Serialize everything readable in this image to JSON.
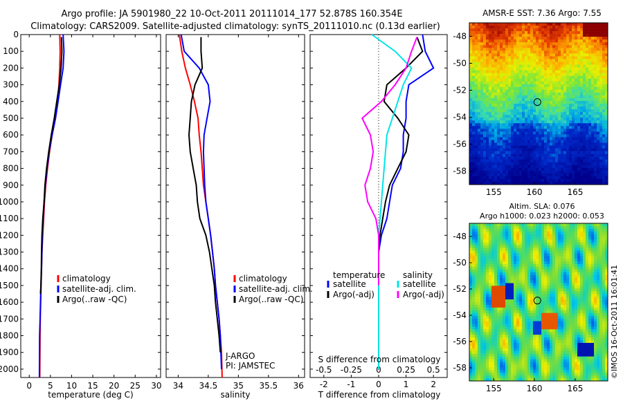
{
  "header": {
    "line1": "Argo profile: JA 5901980_22 10-Oct-2011 20111014_177 52.878S 160.354E",
    "line2": "Climatology: CARS2009. Satellite-adjusted climatology: synTS_20111010.nc (0.13d earlier)"
  },
  "colors": {
    "climatology": "#ff0000",
    "satellite": "#0000ff",
    "argo": "#000000",
    "salinity_satellite": "#00e5e5",
    "salinity_argo": "#ff00ff"
  },
  "chart_data": [
    {
      "type": "line",
      "panel": "temperature",
      "xlabel": "temperature (deg C)",
      "ylabel": "",
      "xlim": [
        -2,
        31
      ],
      "ylim": [
        2050,
        0
      ],
      "xticks": [
        0,
        5,
        10,
        15,
        20,
        25,
        30
      ],
      "yticks": [
        0,
        100,
        200,
        300,
        400,
        500,
        600,
        700,
        800,
        900,
        1000,
        1100,
        1200,
        1300,
        1400,
        1500,
        1600,
        1700,
        1800,
        1900,
        2000
      ],
      "legend": [
        "climatology",
        "satellite-adj. clim.",
        "Argo(..raw -QC)"
      ],
      "series": [
        {
          "name": "climatology",
          "color": "#ff0000",
          "x": [
            7.2,
            7.3,
            7.2,
            7.0,
            6.7,
            6.2,
            5.4,
            4.8,
            4.3,
            3.9,
            3.6,
            3.4,
            3.2,
            3.0,
            2.9,
            2.8,
            2.7,
            2.6,
            2.55,
            2.5
          ],
          "y": [
            0,
            100,
            200,
            300,
            400,
            500,
            600,
            700,
            800,
            900,
            1000,
            1100,
            1200,
            1300,
            1400,
            1500,
            1600,
            1700,
            1800,
            2050
          ]
        },
        {
          "name": "satellite-adj. clim.",
          "color": "#0000ff",
          "x": [
            8.0,
            8.2,
            8.0,
            7.4,
            6.8,
            6.2,
            5.4,
            4.7,
            4.2,
            3.8,
            3.5,
            3.3,
            3.1,
            3.0,
            2.9,
            2.75,
            2.65,
            2.55,
            2.45,
            2.4
          ],
          "y": [
            0,
            100,
            200,
            300,
            400,
            500,
            600,
            700,
            800,
            900,
            1000,
            1100,
            1200,
            1300,
            1400,
            1500,
            1600,
            1700,
            1800,
            2050
          ]
        },
        {
          "name": "Argo(..raw -QC)",
          "color": "#000000",
          "x": [
            7.6,
            7.7,
            7.5,
            7.1,
            6.5,
            5.9,
            5.2,
            4.6,
            4.1,
            3.7,
            3.5,
            3.2,
            3.0,
            2.9,
            2.85,
            2.75,
            2.65
          ],
          "y": [
            15,
            100,
            200,
            300,
            400,
            500,
            600,
            700,
            800,
            900,
            1000,
            1100,
            1200,
            1300,
            1400,
            1500,
            1550
          ]
        }
      ]
    },
    {
      "type": "line",
      "panel": "salinity",
      "xlabel": "salinity",
      "xlim": [
        33.8,
        36.1
      ],
      "ylim": [
        2050,
        0
      ],
      "xticks": [
        34,
        34.5,
        35,
        35.5,
        36
      ],
      "legend": [
        "climatology",
        "satellite-adj. clim.",
        "Argo(..raw -QC)"
      ],
      "annotations": [
        "J-ARGO",
        "PI: JAMSTEC"
      ],
      "series": [
        {
          "name": "climatology",
          "color": "#ff0000",
          "x": [
            34.02,
            34.06,
            34.12,
            34.2,
            34.27,
            34.33,
            34.35,
            34.38,
            34.4,
            34.42,
            34.46,
            34.5,
            34.54,
            34.57,
            34.6,
            34.62,
            34.65,
            34.68,
            34.7,
            34.72,
            34.73
          ],
          "y": [
            0,
            100,
            200,
            300,
            400,
            500,
            600,
            700,
            800,
            900,
            1000,
            1100,
            1200,
            1300,
            1400,
            1500,
            1600,
            1700,
            1800,
            1900,
            2050
          ]
        },
        {
          "name": "satellite-adj. clim.",
          "color": "#0000ff",
          "x": [
            34.05,
            34.1,
            34.35,
            34.5,
            34.53,
            34.48,
            34.43,
            34.42,
            34.43,
            34.44,
            34.46,
            34.5,
            34.54,
            34.57,
            34.6,
            34.62,
            34.65,
            34.68,
            34.7,
            34.71,
            34.72
          ],
          "y": [
            0,
            100,
            200,
            300,
            400,
            500,
            600,
            700,
            800,
            900,
            1000,
            1100,
            1200,
            1300,
            1400,
            1500,
            1600,
            1700,
            1800,
            1900,
            2000
          ]
        },
        {
          "name": "Argo(..raw -QC)",
          "color": "#000000",
          "x": [
            34.38,
            34.38,
            34.4,
            34.28,
            34.22,
            34.2,
            34.18,
            34.2,
            34.25,
            34.3,
            34.32,
            34.36,
            34.46,
            34.52,
            34.56,
            34.6,
            34.62,
            34.65,
            34.68,
            34.7
          ],
          "y": [
            15,
            100,
            200,
            300,
            400,
            500,
            600,
            700,
            800,
            900,
            1000,
            1100,
            1200,
            1300,
            1400,
            1500,
            1600,
            1700,
            1800,
            1900
          ]
        }
      ]
    },
    {
      "type": "line",
      "panel": "difference",
      "xlabel": "T difference from climatology",
      "xlabel2": "S difference from climatology",
      "xlim": [
        -2.5,
        2.5
      ],
      "ylim": [
        2050,
        0
      ],
      "xticks_T": [
        "-2",
        "-1",
        "0",
        "1",
        "2"
      ],
      "xticks_S": [
        "-0.5",
        "-0.25",
        "0",
        "0.25",
        "0.5"
      ],
      "legend_temperature_title": "temperature",
      "legend_salinity_title": "salinity",
      "legend": [
        "satellite",
        "Argo(-adj)",
        "satellite",
        "Argo(-adj)"
      ],
      "series": [
        {
          "name": "T satellite",
          "color": "#0000ff",
          "x": [
            1.6,
            1.7,
            2.0,
            1.1,
            1.0,
            1.0,
            0.9,
            0.9,
            0.8,
            0.5,
            0.4,
            0.3,
            0.1,
            0.0,
            0.0,
            0.0,
            0.0,
            0.0,
            0.0,
            0.0
          ],
          "y": [
            0,
            100,
            200,
            300,
            400,
            500,
            600,
            700,
            800,
            900,
            1000,
            1100,
            1200,
            1300,
            1400,
            1500,
            1600,
            1700,
            1800,
            2000
          ]
        },
        {
          "name": "T Argo(-adj)",
          "color": "#000000",
          "x": [
            1.4,
            1.6,
            1.0,
            0.3,
            0.2,
            0.7,
            1.1,
            1.0,
            0.7,
            0.4,
            0.25,
            0.15,
            0.05,
            0.0,
            0.0,
            0.0
          ],
          "y": [
            15,
            100,
            200,
            300,
            400,
            500,
            600,
            700,
            800,
            900,
            1000,
            1100,
            1200,
            1300,
            1400,
            1550
          ]
        },
        {
          "name": "S satellite",
          "color": "#00e5e5",
          "x": [
            -0.25,
            0.6,
            1.2,
            0.9,
            0.7,
            0.5,
            0.3,
            0.25,
            0.2,
            0.15,
            0.1,
            0.05,
            0.0,
            0.0,
            0.0,
            0.0,
            0.0,
            0.0,
            0.0,
            0.0
          ],
          "y": [
            0,
            100,
            200,
            300,
            400,
            500,
            600,
            700,
            800,
            900,
            1000,
            1100,
            1200,
            1300,
            1400,
            1500,
            1600,
            1700,
            1800,
            2000
          ]
        },
        {
          "name": "S Argo(-adj)",
          "color": "#ff00ff",
          "x": [
            1.4,
            1.2,
            1.0,
            0.6,
            0.1,
            -0.6,
            -0.3,
            -0.2,
            -0.3,
            -0.5,
            -0.4,
            -0.1,
            0.0,
            0.0,
            0.0,
            0.0
          ],
          "y": [
            15,
            100,
            200,
            300,
            400,
            500,
            600,
            700,
            800,
            900,
            1000,
            1100,
            1200,
            1300,
            1400,
            1500
          ]
        }
      ]
    },
    {
      "type": "heatmap",
      "panel": "sst_map",
      "title": "AMSR-E SST: 7.36 Argo: 7.55",
      "xlim": [
        152,
        169
      ],
      "ylim": [
        -59,
        -47
      ],
      "xticks": [
        155,
        160,
        165
      ],
      "yticks": [
        -48,
        -50,
        -52,
        -54,
        -56,
        -58
      ],
      "marker": {
        "lon": 160.354,
        "lat": -52.878
      }
    },
    {
      "type": "heatmap",
      "panel": "sla_map",
      "title": "Altim. SLA: 0.076",
      "subtitle": "Argo h1000: 0.023 h2000: 0.053",
      "xlim": [
        152,
        169
      ],
      "ylim": [
        -59,
        -47
      ],
      "xticks": [
        155,
        160,
        165
      ],
      "yticks": [
        -48,
        -50,
        -52,
        -54,
        -56,
        -58
      ],
      "marker": {
        "lon": 160.354,
        "lat": -52.878
      }
    }
  ],
  "footer": {
    "stamp": "©IMOS 16-Oct-2011 16:01:41"
  }
}
